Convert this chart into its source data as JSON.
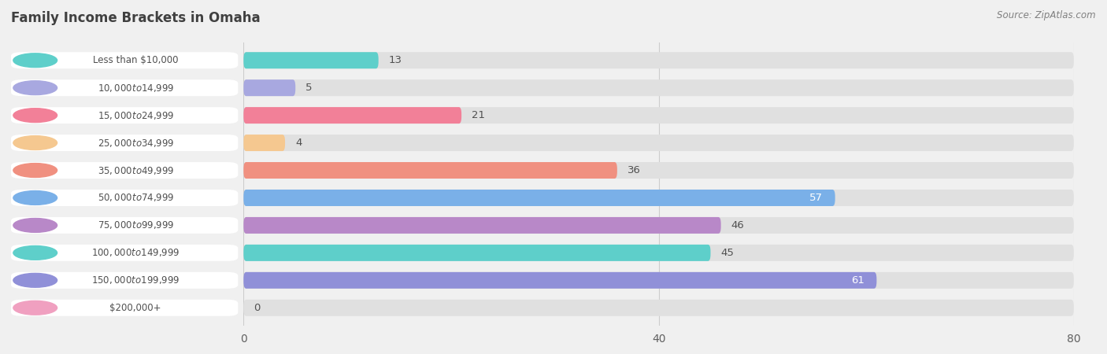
{
  "title": "Family Income Brackets in Omaha",
  "source": "Source: ZipAtlas.com",
  "categories": [
    "Less than $10,000",
    "$10,000 to $14,999",
    "$15,000 to $24,999",
    "$25,000 to $34,999",
    "$35,000 to $49,999",
    "$50,000 to $74,999",
    "$75,000 to $99,999",
    "$100,000 to $149,999",
    "$150,000 to $199,999",
    "$200,000+"
  ],
  "values": [
    13,
    5,
    21,
    4,
    36,
    57,
    46,
    45,
    61,
    0
  ],
  "bar_colors": [
    "#5ecfca",
    "#a8a8e0",
    "#f28098",
    "#f5c890",
    "#f09080",
    "#7ab0e8",
    "#b888c8",
    "#5ecfca",
    "#9090d8",
    "#f0a0c0"
  ],
  "xlim": [
    0,
    80
  ],
  "xticks": [
    0,
    40,
    80
  ],
  "background_color": "#f0f0f0",
  "bar_background_color": "#e0e0e0",
  "title_color": "#404040",
  "label_color": "#505050",
  "source_color": "#808080",
  "white_label_threshold": 55
}
